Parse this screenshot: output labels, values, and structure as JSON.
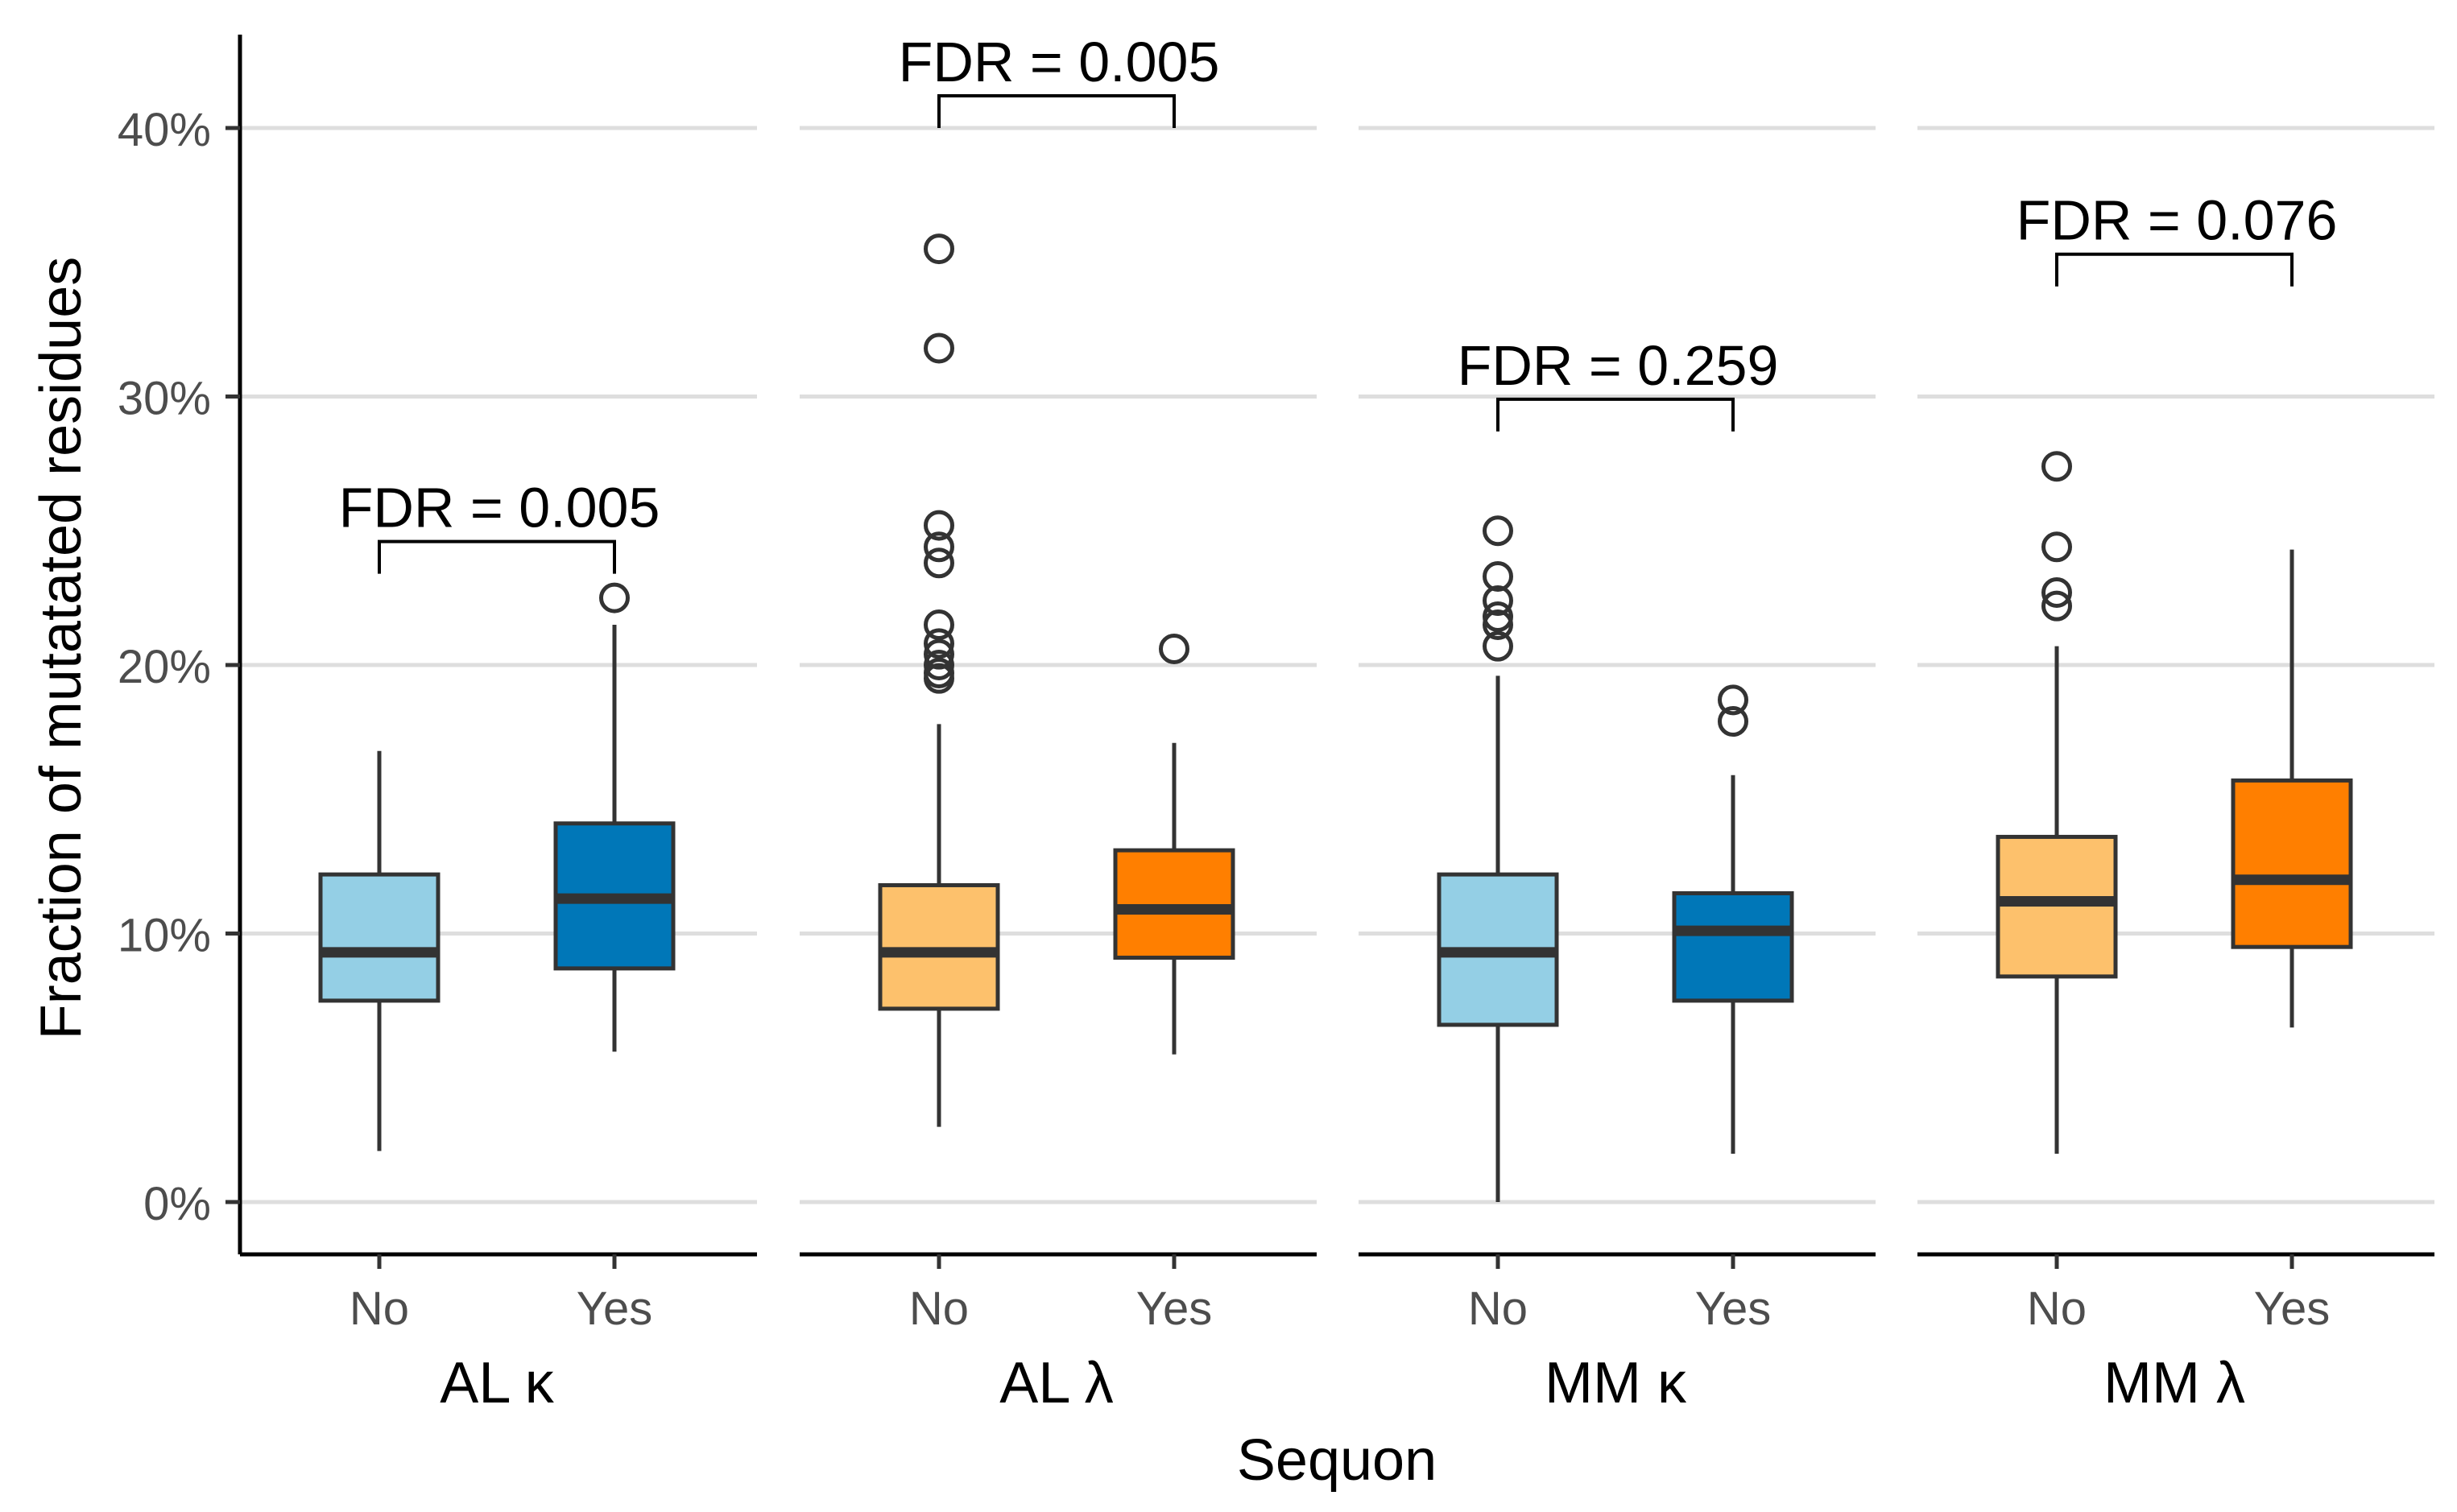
{
  "chart_data": {
    "type": "boxplot",
    "title": "",
    "xlabel": "Sequon",
    "ylabel": "Fraction of mutatated residues",
    "ylim": [
      -0.02,
      0.43
    ],
    "y_ticks": [
      {
        "value": 0.0,
        "label": "0%"
      },
      {
        "value": 0.1,
        "label": "10%"
      },
      {
        "value": 0.2,
        "label": "20%"
      },
      {
        "value": 0.3,
        "label": "30%"
      },
      {
        "value": 0.4,
        "label": "40%"
      }
    ],
    "grid": "horizontal major gridlines",
    "legend": "none",
    "categories": [
      "No",
      "Yes"
    ],
    "facets": [
      {
        "label": "AL κ",
        "significance": {
          "label": "FDR = 0.005",
          "y": 0.246
        },
        "boxes": [
          {
            "category": "No",
            "color": "#94CFE5",
            "q1": 0.075,
            "median": 0.093,
            "q3": 0.122,
            "whisker_low": 0.019,
            "whisker_high": 0.168,
            "outliers": []
          },
          {
            "category": "Yes",
            "color": "#0077B8",
            "q1": 0.087,
            "median": 0.113,
            "q3": 0.141,
            "whisker_low": 0.056,
            "whisker_high": 0.215,
            "outliers": [
              0.225
            ]
          }
        ]
      },
      {
        "label": "AL λ",
        "significance": {
          "label": "FDR = 0.005",
          "y": 0.412
        },
        "boxes": [
          {
            "category": "No",
            "color": "#FDC16C",
            "q1": 0.072,
            "median": 0.093,
            "q3": 0.118,
            "whisker_low": 0.028,
            "whisker_high": 0.178,
            "outliers": [
              0.195,
              0.197,
              0.2,
              0.204,
              0.208,
              0.215,
              0.238,
              0.244,
              0.252,
              0.318,
              0.355
            ]
          },
          {
            "category": "Yes",
            "color": "#FF7F00",
            "q1": 0.091,
            "median": 0.109,
            "q3": 0.131,
            "whisker_low": 0.055,
            "whisker_high": 0.171,
            "outliers": [
              0.206
            ]
          }
        ]
      },
      {
        "label": "MM κ",
        "significance": {
          "label": "FDR = 0.259",
          "y": 0.299
        },
        "boxes": [
          {
            "category": "No",
            "color": "#94CFE5",
            "q1": 0.066,
            "median": 0.093,
            "q3": 0.122,
            "whisker_low": 0.0,
            "whisker_high": 0.196,
            "outliers": [
              0.207,
              0.215,
              0.218,
              0.224,
              0.233,
              0.25
            ]
          },
          {
            "category": "Yes",
            "color": "#0077B8",
            "q1": 0.075,
            "median": 0.101,
            "q3": 0.115,
            "whisker_low": 0.018,
            "whisker_high": 0.159,
            "outliers": [
              0.179,
              0.187
            ]
          }
        ]
      },
      {
        "label": "MM λ",
        "significance": {
          "label": "FDR = 0.076",
          "y": 0.353
        },
        "boxes": [
          {
            "category": "No",
            "color": "#FDC16C",
            "q1": 0.084,
            "median": 0.112,
            "q3": 0.136,
            "whisker_low": 0.018,
            "whisker_high": 0.207,
            "outliers": [
              0.222,
              0.227,
              0.244,
              0.274
            ]
          },
          {
            "category": "Yes",
            "color": "#FF7F00",
            "q1": 0.095,
            "median": 0.12,
            "q3": 0.157,
            "whisker_low": 0.065,
            "whisker_high": 0.243,
            "outliers": []
          }
        ]
      }
    ]
  }
}
